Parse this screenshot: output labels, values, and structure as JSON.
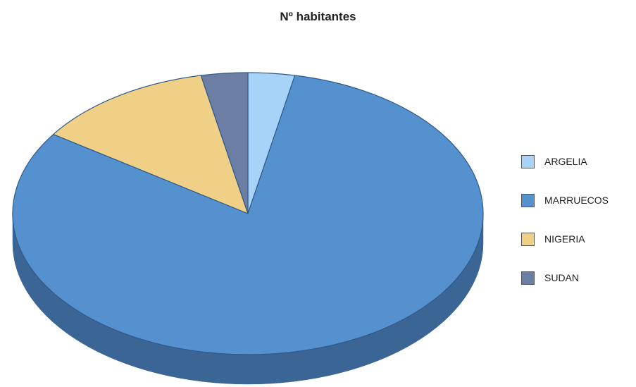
{
  "chart_data": {
    "type": "pie",
    "title": "Nº habitantes",
    "categories": [
      "ARGELIA",
      "MARRUECOS",
      "NIGERIA",
      "SUDAN"
    ],
    "values": [
      3.2,
      81.3,
      12.3,
      3.2
    ],
    "value_unit": "percent of total",
    "colors": [
      "#a6d3f7",
      "#5591cf",
      "#f0d087",
      "#6c7ea3"
    ],
    "side_colors": [
      "#7fa9cc",
      "#3a6595",
      "#c2a35e",
      "#4c5a78"
    ],
    "legend_position": "right",
    "style": "3d"
  }
}
